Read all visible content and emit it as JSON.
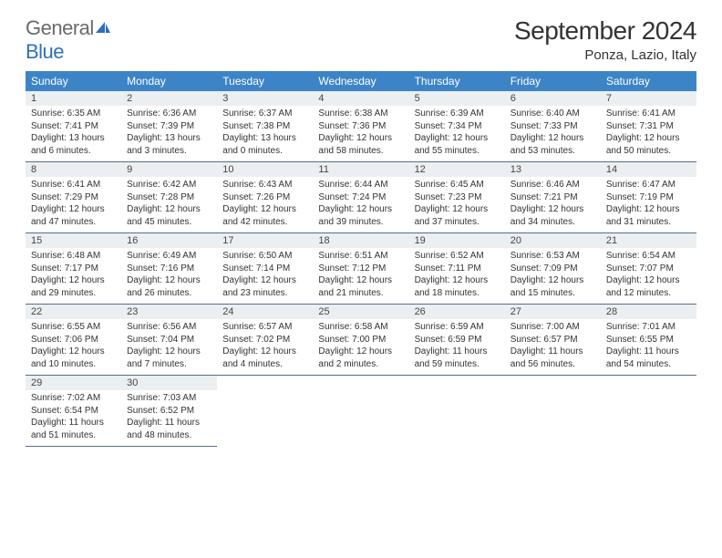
{
  "logo": {
    "text_gray": "General",
    "text_blue": "Blue"
  },
  "title": "September 2024",
  "location": "Ponza, Lazio, Italy",
  "accent_color": "#3d84c6",
  "header_bg": "#3d84c6",
  "daynum_bg": "#eceff1",
  "border_color": "#536e8b",
  "day_headers": [
    "Sunday",
    "Monday",
    "Tuesday",
    "Wednesday",
    "Thursday",
    "Friday",
    "Saturday"
  ],
  "weeks": [
    [
      {
        "n": "1",
        "sr": "Sunrise: 6:35 AM",
        "ss": "Sunset: 7:41 PM",
        "dl1": "Daylight: 13 hours",
        "dl2": "and 6 minutes."
      },
      {
        "n": "2",
        "sr": "Sunrise: 6:36 AM",
        "ss": "Sunset: 7:39 PM",
        "dl1": "Daylight: 13 hours",
        "dl2": "and 3 minutes."
      },
      {
        "n": "3",
        "sr": "Sunrise: 6:37 AM",
        "ss": "Sunset: 7:38 PM",
        "dl1": "Daylight: 13 hours",
        "dl2": "and 0 minutes."
      },
      {
        "n": "4",
        "sr": "Sunrise: 6:38 AM",
        "ss": "Sunset: 7:36 PM",
        "dl1": "Daylight: 12 hours",
        "dl2": "and 58 minutes."
      },
      {
        "n": "5",
        "sr": "Sunrise: 6:39 AM",
        "ss": "Sunset: 7:34 PM",
        "dl1": "Daylight: 12 hours",
        "dl2": "and 55 minutes."
      },
      {
        "n": "6",
        "sr": "Sunrise: 6:40 AM",
        "ss": "Sunset: 7:33 PM",
        "dl1": "Daylight: 12 hours",
        "dl2": "and 53 minutes."
      },
      {
        "n": "7",
        "sr": "Sunrise: 6:41 AM",
        "ss": "Sunset: 7:31 PM",
        "dl1": "Daylight: 12 hours",
        "dl2": "and 50 minutes."
      }
    ],
    [
      {
        "n": "8",
        "sr": "Sunrise: 6:41 AM",
        "ss": "Sunset: 7:29 PM",
        "dl1": "Daylight: 12 hours",
        "dl2": "and 47 minutes."
      },
      {
        "n": "9",
        "sr": "Sunrise: 6:42 AM",
        "ss": "Sunset: 7:28 PM",
        "dl1": "Daylight: 12 hours",
        "dl2": "and 45 minutes."
      },
      {
        "n": "10",
        "sr": "Sunrise: 6:43 AM",
        "ss": "Sunset: 7:26 PM",
        "dl1": "Daylight: 12 hours",
        "dl2": "and 42 minutes."
      },
      {
        "n": "11",
        "sr": "Sunrise: 6:44 AM",
        "ss": "Sunset: 7:24 PM",
        "dl1": "Daylight: 12 hours",
        "dl2": "and 39 minutes."
      },
      {
        "n": "12",
        "sr": "Sunrise: 6:45 AM",
        "ss": "Sunset: 7:23 PM",
        "dl1": "Daylight: 12 hours",
        "dl2": "and 37 minutes."
      },
      {
        "n": "13",
        "sr": "Sunrise: 6:46 AM",
        "ss": "Sunset: 7:21 PM",
        "dl1": "Daylight: 12 hours",
        "dl2": "and 34 minutes."
      },
      {
        "n": "14",
        "sr": "Sunrise: 6:47 AM",
        "ss": "Sunset: 7:19 PM",
        "dl1": "Daylight: 12 hours",
        "dl2": "and 31 minutes."
      }
    ],
    [
      {
        "n": "15",
        "sr": "Sunrise: 6:48 AM",
        "ss": "Sunset: 7:17 PM",
        "dl1": "Daylight: 12 hours",
        "dl2": "and 29 minutes."
      },
      {
        "n": "16",
        "sr": "Sunrise: 6:49 AM",
        "ss": "Sunset: 7:16 PM",
        "dl1": "Daylight: 12 hours",
        "dl2": "and 26 minutes."
      },
      {
        "n": "17",
        "sr": "Sunrise: 6:50 AM",
        "ss": "Sunset: 7:14 PM",
        "dl1": "Daylight: 12 hours",
        "dl2": "and 23 minutes."
      },
      {
        "n": "18",
        "sr": "Sunrise: 6:51 AM",
        "ss": "Sunset: 7:12 PM",
        "dl1": "Daylight: 12 hours",
        "dl2": "and 21 minutes."
      },
      {
        "n": "19",
        "sr": "Sunrise: 6:52 AM",
        "ss": "Sunset: 7:11 PM",
        "dl1": "Daylight: 12 hours",
        "dl2": "and 18 minutes."
      },
      {
        "n": "20",
        "sr": "Sunrise: 6:53 AM",
        "ss": "Sunset: 7:09 PM",
        "dl1": "Daylight: 12 hours",
        "dl2": "and 15 minutes."
      },
      {
        "n": "21",
        "sr": "Sunrise: 6:54 AM",
        "ss": "Sunset: 7:07 PM",
        "dl1": "Daylight: 12 hours",
        "dl2": "and 12 minutes."
      }
    ],
    [
      {
        "n": "22",
        "sr": "Sunrise: 6:55 AM",
        "ss": "Sunset: 7:06 PM",
        "dl1": "Daylight: 12 hours",
        "dl2": "and 10 minutes."
      },
      {
        "n": "23",
        "sr": "Sunrise: 6:56 AM",
        "ss": "Sunset: 7:04 PM",
        "dl1": "Daylight: 12 hours",
        "dl2": "and 7 minutes."
      },
      {
        "n": "24",
        "sr": "Sunrise: 6:57 AM",
        "ss": "Sunset: 7:02 PM",
        "dl1": "Daylight: 12 hours",
        "dl2": "and 4 minutes."
      },
      {
        "n": "25",
        "sr": "Sunrise: 6:58 AM",
        "ss": "Sunset: 7:00 PM",
        "dl1": "Daylight: 12 hours",
        "dl2": "and 2 minutes."
      },
      {
        "n": "26",
        "sr": "Sunrise: 6:59 AM",
        "ss": "Sunset: 6:59 PM",
        "dl1": "Daylight: 11 hours",
        "dl2": "and 59 minutes."
      },
      {
        "n": "27",
        "sr": "Sunrise: 7:00 AM",
        "ss": "Sunset: 6:57 PM",
        "dl1": "Daylight: 11 hours",
        "dl2": "and 56 minutes."
      },
      {
        "n": "28",
        "sr": "Sunrise: 7:01 AM",
        "ss": "Sunset: 6:55 PM",
        "dl1": "Daylight: 11 hours",
        "dl2": "and 54 minutes."
      }
    ],
    [
      {
        "n": "29",
        "sr": "Sunrise: 7:02 AM",
        "ss": "Sunset: 6:54 PM",
        "dl1": "Daylight: 11 hours",
        "dl2": "and 51 minutes."
      },
      {
        "n": "30",
        "sr": "Sunrise: 7:03 AM",
        "ss": "Sunset: 6:52 PM",
        "dl1": "Daylight: 11 hours",
        "dl2": "and 48 minutes."
      },
      null,
      null,
      null,
      null,
      null
    ]
  ]
}
